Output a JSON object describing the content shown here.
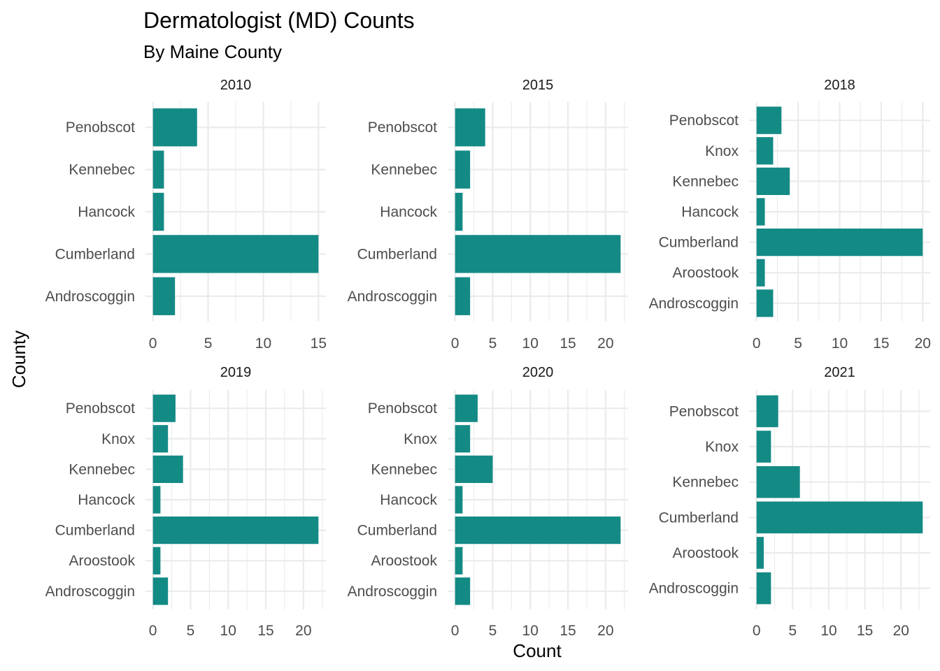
{
  "chart_data": {
    "type": "bar",
    "orientation": "horizontal",
    "title": "Dermatologist (MD) Counts",
    "subtitle": "By Maine County",
    "xlabel": "Count",
    "ylabel": "County",
    "grid": true,
    "bar_color": "#148A85",
    "facets": [
      {
        "label": "2010",
        "categories": [
          "Androscoggin",
          "Cumberland",
          "Hancock",
          "Kennebec",
          "Penobscot"
        ],
        "values": [
          2,
          15,
          1,
          1,
          4
        ],
        "xticks": [
          0,
          5,
          10,
          15
        ],
        "xlim": [
          0,
          15
        ]
      },
      {
        "label": "2015",
        "categories": [
          "Androscoggin",
          "Cumberland",
          "Hancock",
          "Kennebec",
          "Penobscot"
        ],
        "values": [
          2,
          22,
          1,
          2,
          4
        ],
        "xticks": [
          0,
          5,
          10,
          15,
          20
        ],
        "xlim": [
          0,
          22
        ]
      },
      {
        "label": "2018",
        "categories": [
          "Androscoggin",
          "Aroostook",
          "Cumberland",
          "Hancock",
          "Kennebec",
          "Knox",
          "Penobscot"
        ],
        "values": [
          2,
          1,
          20,
          1,
          4,
          2,
          3
        ],
        "xticks": [
          0,
          5,
          10,
          15,
          20
        ],
        "xlim": [
          0,
          20
        ]
      },
      {
        "label": "2019",
        "categories": [
          "Androscoggin",
          "Aroostook",
          "Cumberland",
          "Hancock",
          "Kennebec",
          "Knox",
          "Penobscot"
        ],
        "values": [
          2,
          1,
          22,
          1,
          4,
          2,
          3
        ],
        "xticks": [
          0,
          5,
          10,
          15,
          20
        ],
        "xlim": [
          0,
          22
        ]
      },
      {
        "label": "2020",
        "categories": [
          "Androscoggin",
          "Aroostook",
          "Cumberland",
          "Hancock",
          "Kennebec",
          "Knox",
          "Penobscot"
        ],
        "values": [
          2,
          1,
          22,
          1,
          5,
          2,
          3
        ],
        "xticks": [
          0,
          5,
          10,
          15,
          20
        ],
        "xlim": [
          0,
          22
        ]
      },
      {
        "label": "2021",
        "categories": [
          "Androscoggin",
          "Aroostook",
          "Cumberland",
          "Kennebec",
          "Knox",
          "Penobscot"
        ],
        "values": [
          2,
          1,
          23,
          6,
          2,
          3
        ],
        "xticks": [
          0,
          5,
          10,
          15,
          20
        ],
        "xlim": [
          0,
          23
        ]
      }
    ]
  }
}
